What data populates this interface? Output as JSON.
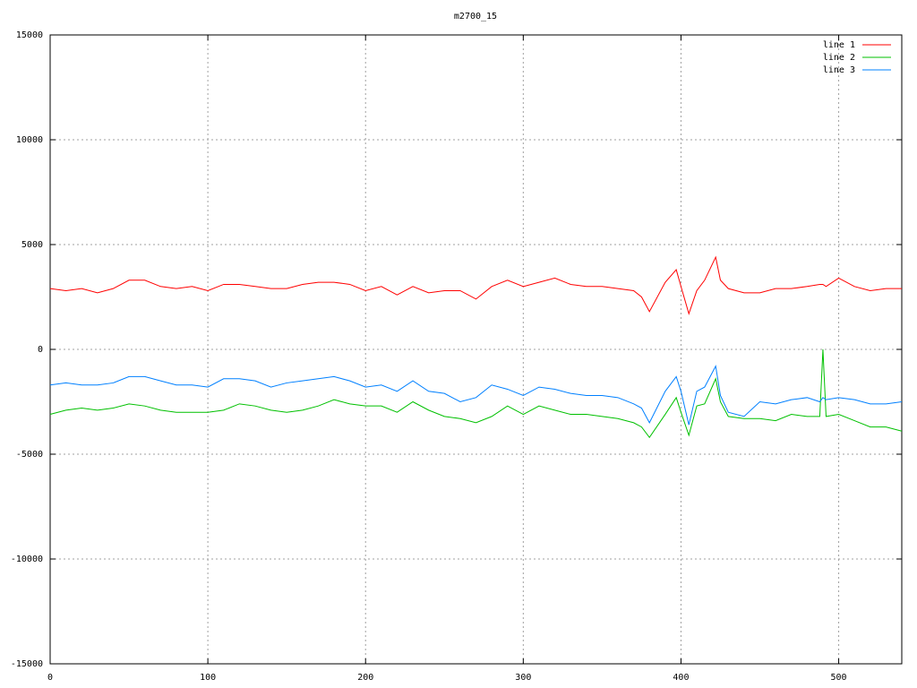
{
  "chart_data": {
    "type": "line",
    "title": "m2700_15",
    "x": [
      0,
      10,
      20,
      30,
      40,
      50,
      60,
      70,
      80,
      90,
      100,
      110,
      120,
      130,
      140,
      150,
      160,
      170,
      180,
      190,
      200,
      210,
      220,
      230,
      240,
      250,
      260,
      270,
      280,
      290,
      300,
      310,
      320,
      330,
      340,
      350,
      360,
      370,
      375,
      380,
      390,
      397,
      400,
      405,
      410,
      415,
      422,
      425,
      430,
      440,
      450,
      460,
      470,
      480,
      488,
      490,
      492,
      500,
      510,
      520,
      530,
      540
    ],
    "series": [
      {
        "name": "line 1",
        "color": "#ff0000",
        "values": [
          2900,
          2800,
          2900,
          2700,
          2900,
          3300,
          3300,
          3000,
          2900,
          3000,
          2800,
          3100,
          3100,
          3000,
          2900,
          2900,
          3100,
          3200,
          3200,
          3100,
          2800,
          3000,
          2600,
          3000,
          2700,
          2800,
          2800,
          2400,
          3000,
          3300,
          3000,
          3200,
          3400,
          3100,
          3000,
          3000,
          2900,
          2800,
          2500,
          1800,
          3200,
          3800,
          3000,
          1700,
          2800,
          3300,
          4400,
          3300,
          2900,
          2700,
          2700,
          2900,
          2900,
          3000,
          3100,
          3100,
          3000,
          3400,
          3000,
          2800,
          2900,
          2900
        ]
      },
      {
        "name": "line 2",
        "color": "#00c000",
        "values": [
          -3100,
          -2900,
          -2800,
          -2900,
          -2800,
          -2600,
          -2700,
          -2900,
          -3000,
          -3000,
          -3000,
          -2900,
          -2600,
          -2700,
          -2900,
          -3000,
          -2900,
          -2700,
          -2400,
          -2600,
          -2700,
          -2700,
          -3000,
          -2500,
          -2900,
          -3200,
          -3300,
          -3500,
          -3200,
          -2700,
          -3100,
          -2700,
          -2900,
          -3100,
          -3100,
          -3200,
          -3300,
          -3500,
          -3700,
          -4200,
          -3100,
          -2300,
          -3000,
          -4100,
          -2700,
          -2600,
          -1400,
          -2500,
          -3200,
          -3300,
          -3300,
          -3400,
          -3100,
          -3200,
          -3200,
          0,
          -3200,
          -3100,
          -3400,
          -3700,
          -3700,
          -3900
        ]
      },
      {
        "name": "line 3",
        "color": "#0080ff",
        "values": [
          -1700,
          -1600,
          -1700,
          -1700,
          -1600,
          -1300,
          -1300,
          -1500,
          -1700,
          -1700,
          -1800,
          -1400,
          -1400,
          -1500,
          -1800,
          -1600,
          -1500,
          -1400,
          -1300,
          -1500,
          -1800,
          -1700,
          -2000,
          -1500,
          -2000,
          -2100,
          -2500,
          -2300,
          -1700,
          -1900,
          -2200,
          -1800,
          -1900,
          -2100,
          -2200,
          -2200,
          -2300,
          -2600,
          -2800,
          -3500,
          -2000,
          -1300,
          -2000,
          -3600,
          -2000,
          -1800,
          -800,
          -2200,
          -3000,
          -3200,
          -2500,
          -2600,
          -2400,
          -2300,
          -2500,
          -2300,
          -2400,
          -2300,
          -2400,
          -2600,
          -2600,
          -2500
        ]
      }
    ],
    "xlim": [
      0,
      540
    ],
    "xticks": [
      0,
      100,
      200,
      300,
      400,
      500
    ],
    "ylim": [
      -15000,
      15000
    ],
    "yticks": [
      -15000,
      -10000,
      -5000,
      0,
      5000,
      10000,
      15000
    ],
    "grid": true,
    "legend": "top-right"
  }
}
